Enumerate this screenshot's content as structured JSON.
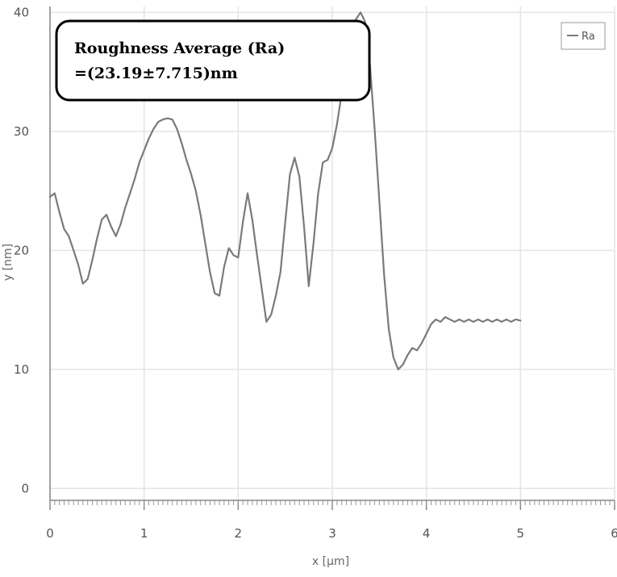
{
  "chart_data": {
    "type": "line",
    "xlabel": "x [µm]",
    "ylabel": "y [nm]",
    "xlim": [
      0,
      6
    ],
    "ylim": [
      -1,
      40.5
    ],
    "xticks": [
      "0",
      "1",
      "2",
      "3",
      "4",
      "5",
      "6"
    ],
    "yticks": [
      "0",
      "10",
      "20",
      "30",
      "40"
    ],
    "grid": true,
    "legend_position": "top-right",
    "annotation": [
      "Roughness Average (Ra)",
      "=(23.19±7.715)nm"
    ],
    "series": [
      {
        "name": "Ra",
        "color": "#7a7a7a",
        "x": [
          0,
          0.05,
          0.1,
          0.15,
          0.2,
          0.25,
          0.3,
          0.35,
          0.4,
          0.45,
          0.5,
          0.55,
          0.6,
          0.65,
          0.7,
          0.75,
          0.8,
          0.85,
          0.9,
          0.95,
          1.0,
          1.05,
          1.1,
          1.15,
          1.2,
          1.25,
          1.3,
          1.35,
          1.4,
          1.45,
          1.5,
          1.55,
          1.6,
          1.65,
          1.7,
          1.75,
          1.8,
          1.85,
          1.9,
          1.95,
          2.0,
          2.05,
          2.1,
          2.15,
          2.2,
          2.25,
          2.3,
          2.35,
          2.4,
          2.45,
          2.5,
          2.55,
          2.6,
          2.65,
          2.7,
          2.75,
          2.8,
          2.85,
          2.9,
          2.95,
          3.0,
          3.05,
          3.1,
          3.15,
          3.2,
          3.25,
          3.3,
          3.35,
          3.4,
          3.45,
          3.5,
          3.55,
          3.6,
          3.65,
          3.7,
          3.75,
          3.8,
          3.85,
          3.9,
          3.95,
          4.0,
          4.05,
          4.1,
          4.15,
          4.2,
          4.25,
          4.3,
          4.35,
          4.4,
          4.45,
          4.5,
          4.55,
          4.6,
          4.65,
          4.7,
          4.75,
          4.8,
          4.85,
          4.9,
          4.95,
          5.0
        ],
        "y": [
          24.5,
          24.8,
          23.2,
          21.8,
          21.2,
          20.0,
          18.8,
          17.2,
          17.6,
          19.2,
          21.0,
          22.6,
          23.0,
          22.0,
          21.2,
          22.2,
          23.6,
          24.8,
          26.0,
          27.4,
          28.4,
          29.4,
          30.2,
          30.8,
          31.0,
          31.1,
          31.0,
          30.2,
          29.0,
          27.6,
          26.4,
          25.0,
          23.0,
          20.6,
          18.2,
          16.4,
          16.2,
          18.6,
          20.2,
          19.6,
          19.4,
          22.4,
          24.8,
          22.6,
          19.6,
          16.8,
          14.0,
          14.6,
          16.2,
          18.2,
          22.4,
          26.4,
          27.8,
          26.2,
          22.0,
          17.0,
          20.6,
          24.8,
          27.4,
          27.6,
          28.6,
          30.6,
          33.2,
          35.6,
          37.6,
          39.4,
          40.0,
          39.2,
          35.6,
          30.2,
          24.2,
          18.0,
          13.4,
          11.0,
          10.0,
          10.4,
          11.2,
          11.8,
          11.6,
          12.2,
          13.0,
          13.8,
          14.2,
          14.0,
          14.4,
          14.2,
          14.0,
          14.2,
          14.0,
          14.2,
          14.0,
          14.2,
          14.0,
          14.2,
          14.0,
          14.2,
          14.0,
          14.2,
          14.0,
          14.2,
          14.1
        ]
      }
    ]
  }
}
